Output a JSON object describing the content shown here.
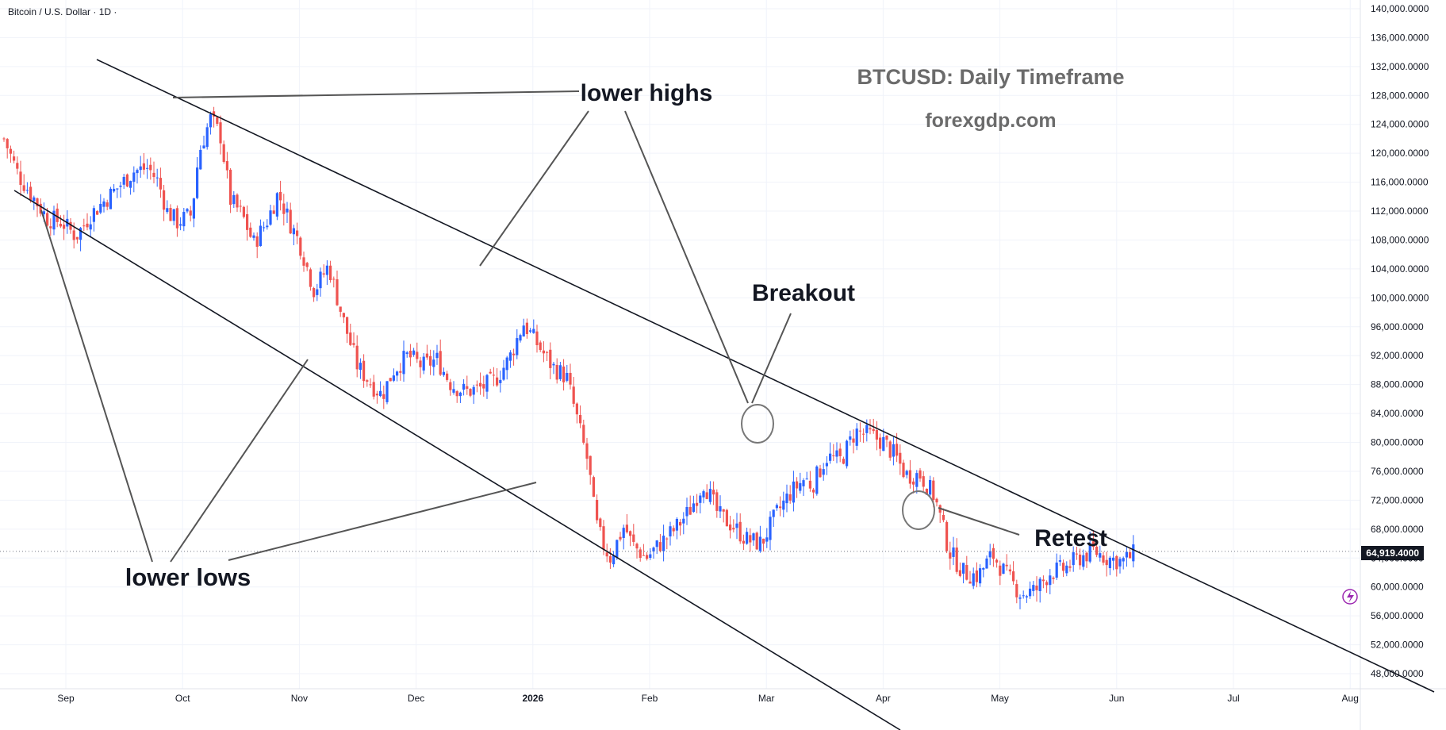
{
  "header": {
    "symbol": "Bitcoin / U.S. Dollar · 1D ·"
  },
  "titles": {
    "main": "BTCUSD: Daily Timeframe",
    "site": "forexgdp.com"
  },
  "annotations": {
    "lower_highs": "lower highs",
    "lower_lows": "lower lows",
    "breakout": "Breakout",
    "retest": "Retest"
  },
  "current_price": "64,919.4000",
  "colors": {
    "up": "#2962ff",
    "down": "#ef5350",
    "line": "#131722",
    "annotation": "#555555",
    "grid": "#f0f3fa",
    "title": "#6b6b6b"
  },
  "chart_data": {
    "type": "candlestick",
    "title": "BTCUSD: Daily Timeframe",
    "ylim": [
      45000,
      140000
    ],
    "y_ticks": [
      48000,
      52000,
      56000,
      60000,
      64000,
      68000,
      72000,
      76000,
      80000,
      84000,
      88000,
      92000,
      96000,
      100000,
      104000,
      108000,
      112000,
      116000,
      120000,
      124000,
      128000,
      132000,
      136000,
      140000
    ],
    "y_tick_labels": [
      "48,000.0000",
      "52,000.0000",
      "56,000.0000",
      "60,000.0000",
      "64,000.0000",
      "68,000.0000",
      "72,000.0000",
      "76,000.0000",
      "80,000.0000",
      "84,000.0000",
      "88,000.0000",
      "92,000.0000",
      "96,000.0000",
      "100,000.0000",
      "104,000.0000",
      "108,000.0000",
      "112,000.0000",
      "116,000.0000",
      "120,000.0000",
      "124,000.0000",
      "128,000.0000",
      "132,000.0000",
      "136,000.0000",
      "140,000.0000"
    ],
    "x_labels": [
      {
        "label": "Sep",
        "month": 1
      },
      {
        "label": "Oct",
        "month": 2
      },
      {
        "label": "Nov",
        "month": 3
      },
      {
        "label": "Dec",
        "month": 4
      },
      {
        "label": "2026",
        "month": 5
      },
      {
        "label": "Feb",
        "month": 6
      },
      {
        "label": "Mar",
        "month": 7
      },
      {
        "label": "Apr",
        "month": 8
      },
      {
        "label": "May",
        "month": 9
      },
      {
        "label": "Jun",
        "month": 10
      },
      {
        "label": "Jul",
        "month": 11
      },
      {
        "label": "Aug",
        "month": 12
      }
    ],
    "close_path": [
      [
        0,
        122000
      ],
      [
        0.1,
        117000
      ],
      [
        0.2,
        114000
      ],
      [
        0.3,
        111000
      ],
      [
        0.4,
        110500
      ],
      [
        0.5,
        108500
      ],
      [
        0.6,
        111500
      ],
      [
        0.7,
        113500
      ],
      [
        0.8,
        115500
      ],
      [
        0.9,
        117500
      ],
      [
        1,
        118000
      ],
      [
        1.07,
        116000
      ],
      [
        1.13,
        112000
      ],
      [
        1.2,
        110500
      ],
      [
        1.3,
        111500
      ],
      [
        1.35,
        120000
      ],
      [
        1.43,
        124800
      ],
      [
        1.5,
        122500
      ],
      [
        1.57,
        113500
      ],
      [
        1.65,
        111500
      ],
      [
        1.73,
        107500
      ],
      [
        1.82,
        110500
      ],
      [
        1.9,
        114500
      ],
      [
        1.98,
        110500
      ],
      [
        2.05,
        107500
      ],
      [
        2.15,
        101000
      ],
      [
        2.25,
        104500
      ],
      [
        2.35,
        97000
      ],
      [
        2.45,
        90500
      ],
      [
        2.55,
        88000
      ],
      [
        2.62,
        86500
      ],
      [
        2.7,
        90000
      ],
      [
        2.8,
        92000
      ],
      [
        2.9,
        90500
      ],
      [
        3,
        91500
      ],
      [
        3.1,
        88000
      ],
      [
        3.2,
        87000
      ],
      [
        3.3,
        87500
      ],
      [
        3.4,
        88500
      ],
      [
        3.5,
        91500
      ],
      [
        3.6,
        96500
      ],
      [
        3.7,
        93500
      ],
      [
        3.8,
        90500
      ],
      [
        3.9,
        89000
      ],
      [
        4,
        81000
      ],
      [
        4.05,
        77000
      ],
      [
        4.1,
        69000
      ],
      [
        4.15,
        66000
      ],
      [
        4.2,
        64000
      ],
      [
        4.3,
        68500
      ],
      [
        4.35,
        66000
      ],
      [
        4.45,
        64000
      ],
      [
        4.55,
        66000
      ],
      [
        4.65,
        68000
      ],
      [
        4.75,
        70500
      ],
      [
        4.85,
        74500
      ],
      [
        4.95,
        70000
      ],
      [
        5.05,
        68500
      ],
      [
        5.15,
        66500
      ],
      [
        5.25,
        66000
      ],
      [
        5.35,
        70000
      ],
      [
        5.45,
        73000
      ],
      [
        5.55,
        75000
      ],
      [
        5.6,
        74000
      ],
      [
        5.7,
        78000
      ],
      [
        5.8,
        77500
      ],
      [
        5.9,
        81500
      ],
      [
        6,
        81000
      ],
      [
        6.1,
        80000
      ],
      [
        6.18,
        78000
      ],
      [
        6.25,
        75500
      ],
      [
        6.35,
        75500
      ],
      [
        6.45,
        72500
      ],
      [
        6.55,
        65000
      ],
      [
        6.65,
        62000
      ],
      [
        6.75,
        61500
      ],
      [
        6.85,
        64500
      ],
      [
        6.95,
        61500
      ],
      [
        7.05,
        59000
      ],
      [
        7.15,
        59500
      ],
      [
        7.25,
        62000
      ],
      [
        7.35,
        62500
      ],
      [
        7.45,
        64000
      ],
      [
        7.55,
        65000
      ],
      [
        7.65,
        64000
      ],
      [
        7.75,
        63500
      ],
      [
        7.85,
        64800
      ]
    ],
    "annotations": [
      "lower highs",
      "lower lows",
      "Breakout",
      "Retest"
    ],
    "last_price": 64919.4
  }
}
